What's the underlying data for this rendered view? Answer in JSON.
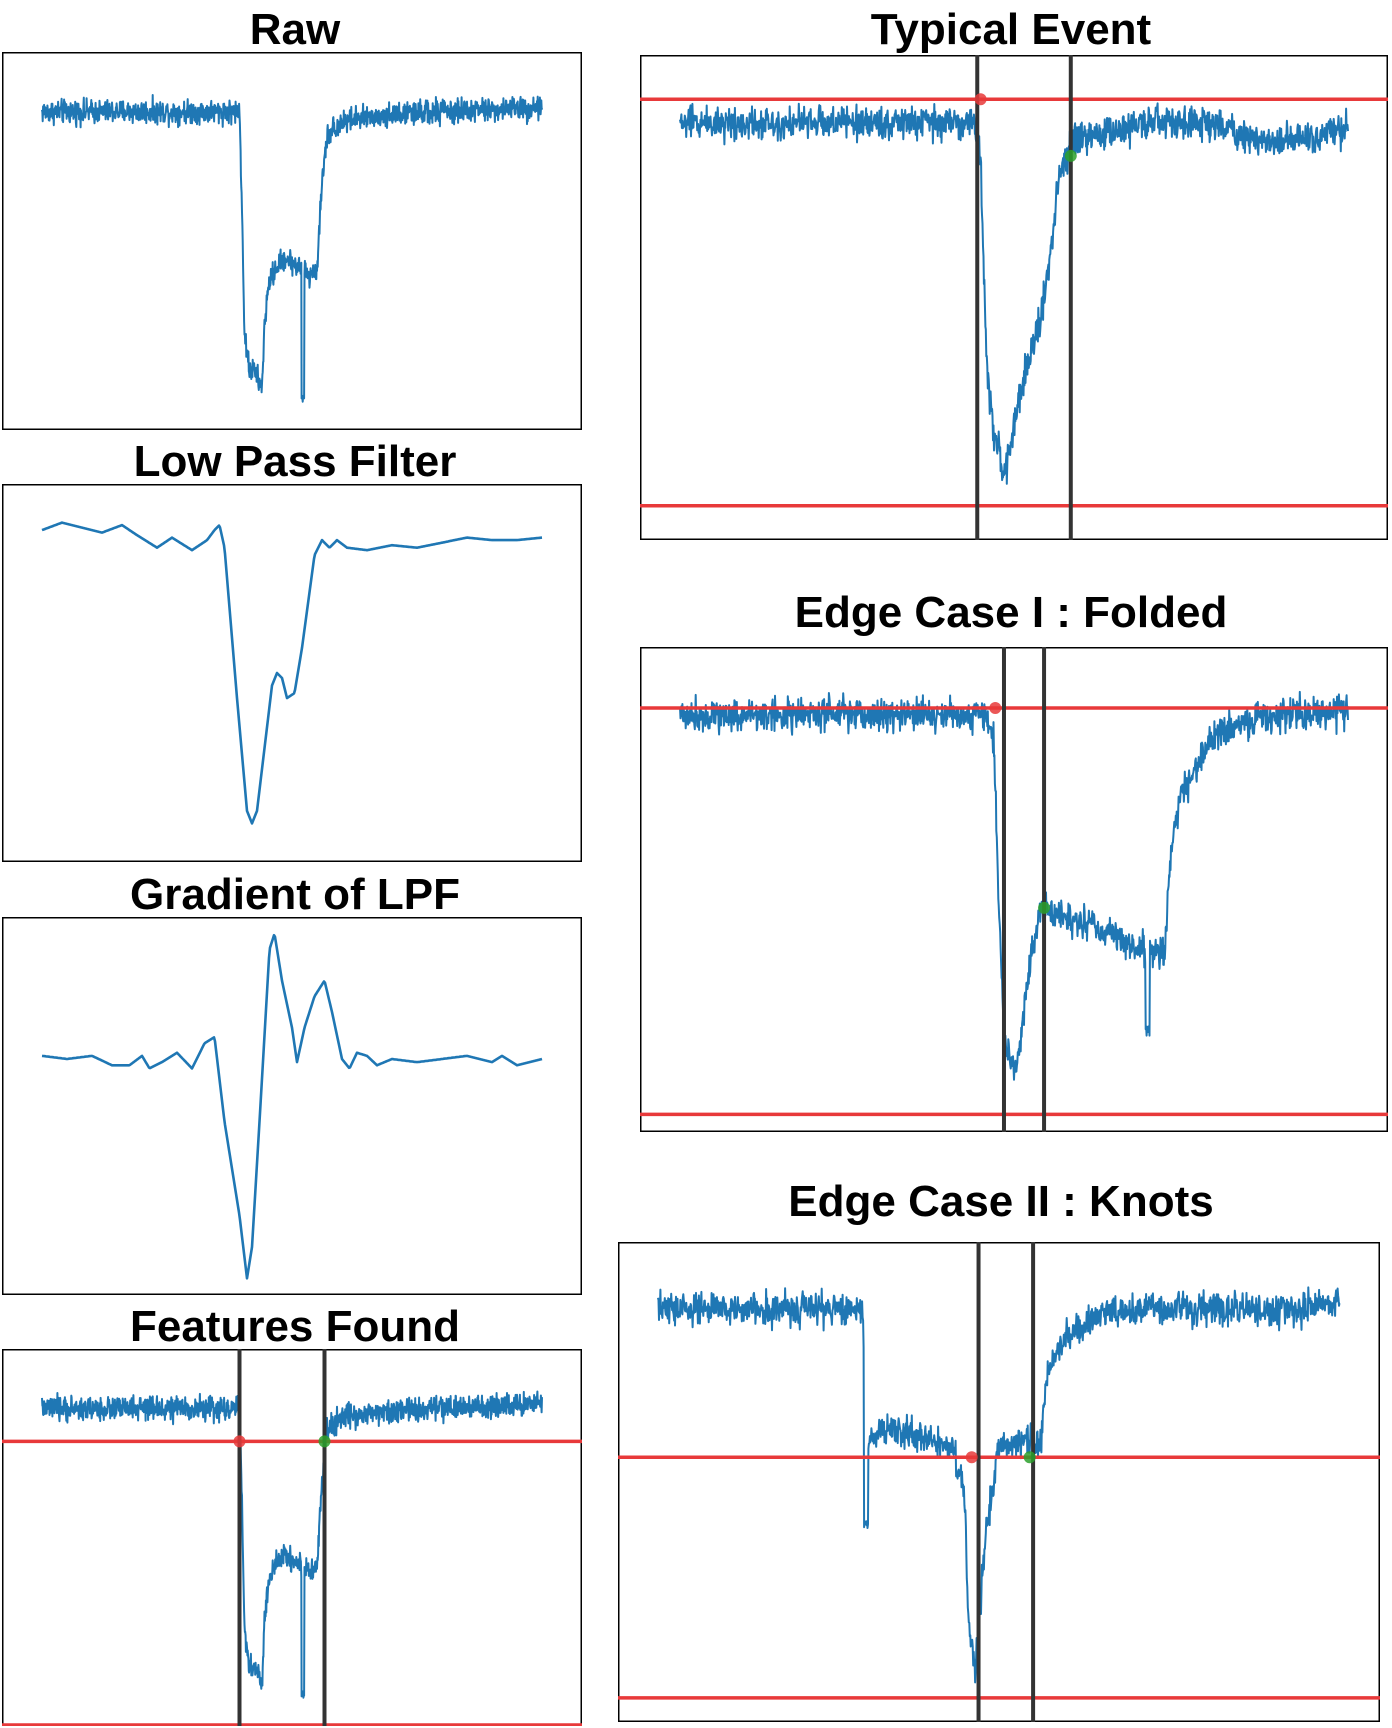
{
  "figure": {
    "colors": {
      "signal": "#1f77b4",
      "threshold": "#e8393a",
      "boundary": "#333333",
      "frame": "#000000",
      "start_marker": "#e8393a",
      "end_marker": "#2ca02c"
    }
  },
  "chart_data": [
    {
      "id": "raw",
      "type": "line",
      "title": "Raw",
      "xlim": [
        0,
        1000
      ],
      "ylim": [
        -1.35,
        0.25
      ],
      "noise": 0.035,
      "trace": [
        [
          0,
          0
        ],
        [
          395,
          0
        ],
        [
          400,
          -0.4
        ],
        [
          405,
          -0.95
        ],
        [
          415,
          -1.1
        ],
        [
          425,
          -1.1
        ],
        [
          440,
          -1.18
        ],
        [
          445,
          -0.9
        ],
        [
          455,
          -0.72
        ],
        [
          470,
          -0.66
        ],
        [
          485,
          -0.62
        ],
        [
          505,
          -0.65
        ],
        [
          525,
          -0.68
        ],
        [
          535,
          -0.7
        ],
        [
          550,
          -0.67
        ],
        [
          560,
          -0.3
        ],
        [
          570,
          -0.1
        ],
        [
          600,
          -0.04
        ],
        [
          700,
          -0.01
        ],
        [
          800,
          0
        ],
        [
          1000,
          0.02
        ]
      ],
      "spikes": [
        [
          522,
          -1.22
        ]
      ],
      "thresholds": [],
      "boundaries": [],
      "markers": []
    },
    {
      "id": "lpf",
      "type": "line",
      "title": "Low Pass Filter",
      "xlim": [
        0,
        1000
      ],
      "ylim": [
        -1.3,
        0.2
      ],
      "noise": 0,
      "trace": [
        [
          0,
          0.02
        ],
        [
          40,
          0.05
        ],
        [
          80,
          0.03
        ],
        [
          120,
          0.01
        ],
        [
          160,
          0.04
        ],
        [
          190,
          0.0
        ],
        [
          230,
          -0.05
        ],
        [
          260,
          -0.01
        ],
        [
          300,
          -0.06
        ],
        [
          330,
          -0.02
        ],
        [
          345,
          0.02
        ],
        [
          355,
          0.04
        ],
        [
          365,
          -0.05
        ],
        [
          390,
          -0.65
        ],
        [
          410,
          -1.1
        ],
        [
          420,
          -1.15
        ],
        [
          430,
          -1.1
        ],
        [
          445,
          -0.85
        ],
        [
          460,
          -0.6
        ],
        [
          470,
          -0.55
        ],
        [
          480,
          -0.57
        ],
        [
          490,
          -0.65
        ],
        [
          505,
          -0.63
        ],
        [
          520,
          -0.45
        ],
        [
          545,
          -0.08
        ],
        [
          560,
          -0.02
        ],
        [
          575,
          -0.05
        ],
        [
          590,
          -0.02
        ],
        [
          610,
          -0.05
        ],
        [
          650,
          -0.06
        ],
        [
          700,
          -0.04
        ],
        [
          750,
          -0.05
        ],
        [
          800,
          -0.03
        ],
        [
          850,
          -0.01
        ],
        [
          900,
          -0.02
        ],
        [
          950,
          -0.02
        ],
        [
          1000,
          -0.01
        ]
      ],
      "spikes": [],
      "thresholds": [],
      "boundaries": [],
      "markers": []
    },
    {
      "id": "grad",
      "type": "line",
      "title": "Gradient of LPF",
      "xlim": [
        0,
        1000
      ],
      "ylim": [
        -0.75,
        0.45
      ],
      "noise": 0,
      "trace": [
        [
          0,
          0.01
        ],
        [
          50,
          0.0
        ],
        [
          100,
          0.01
        ],
        [
          140,
          -0.02
        ],
        [
          175,
          -0.02
        ],
        [
          200,
          0.01
        ],
        [
          215,
          -0.03
        ],
        [
          240,
          -0.01
        ],
        [
          270,
          0.02
        ],
        [
          300,
          -0.03
        ],
        [
          325,
          0.05
        ],
        [
          345,
          0.07
        ],
        [
          365,
          -0.2
        ],
        [
          395,
          -0.5
        ],
        [
          410,
          -0.7
        ],
        [
          420,
          -0.6
        ],
        [
          435,
          -0.2
        ],
        [
          455,
          0.35
        ],
        [
          465,
          0.4
        ],
        [
          480,
          0.25
        ],
        [
          500,
          0.1
        ],
        [
          510,
          -0.01
        ],
        [
          525,
          0.1
        ],
        [
          545,
          0.2
        ],
        [
          565,
          0.25
        ],
        [
          580,
          0.15
        ],
        [
          600,
          0.0
        ],
        [
          615,
          -0.03
        ],
        [
          630,
          0.02
        ],
        [
          650,
          0.01
        ],
        [
          670,
          -0.02
        ],
        [
          700,
          0.0
        ],
        [
          750,
          -0.01
        ],
        [
          800,
          0.0
        ],
        [
          850,
          0.01
        ],
        [
          900,
          -0.01
        ],
        [
          920,
          0.01
        ],
        [
          950,
          -0.02
        ],
        [
          1000,
          0.0
        ]
      ],
      "spikes": [],
      "thresholds": [],
      "boundaries": [],
      "markers": []
    },
    {
      "id": "features",
      "type": "line",
      "title": "Features Found",
      "xlim": [
        0,
        1000
      ],
      "ylim": [
        -1.35,
        0.25
      ],
      "noise": 0.035,
      "trace": [
        [
          0,
          0
        ],
        [
          395,
          0
        ],
        [
          400,
          -0.4
        ],
        [
          405,
          -0.95
        ],
        [
          415,
          -1.1
        ],
        [
          425,
          -1.1
        ],
        [
          440,
          -1.18
        ],
        [
          445,
          -0.9
        ],
        [
          455,
          -0.72
        ],
        [
          470,
          -0.66
        ],
        [
          485,
          -0.62
        ],
        [
          505,
          -0.65
        ],
        [
          525,
          -0.68
        ],
        [
          535,
          -0.7
        ],
        [
          550,
          -0.67
        ],
        [
          560,
          -0.3
        ],
        [
          570,
          -0.1
        ],
        [
          600,
          -0.04
        ],
        [
          700,
          -0.01
        ],
        [
          800,
          0
        ],
        [
          1000,
          0.02
        ]
      ],
      "spikes": [
        [
          522,
          -1.22
        ]
      ],
      "thresholds": [
        -0.14,
        -1.35
      ],
      "boundaries": [
        395,
        565
      ],
      "markers": [
        [
          395,
          -0.14,
          "start"
        ],
        [
          565,
          -0.14,
          "end"
        ]
      ]
    },
    {
      "id": "typical",
      "type": "line",
      "title": "Typical Event",
      "xlim": [
        0,
        1000
      ],
      "ylim": [
        -1.25,
        0.2
      ],
      "noise": 0.035,
      "trace": [
        [
          0,
          0
        ],
        [
          440,
          0
        ],
        [
          450,
          -0.1
        ],
        [
          455,
          -0.45
        ],
        [
          460,
          -0.75
        ],
        [
          470,
          -0.95
        ],
        [
          480,
          -1.0
        ],
        [
          485,
          -1.08
        ],
        [
          490,
          -1.02
        ],
        [
          500,
          -0.9
        ],
        [
          510,
          -0.8
        ],
        [
          525,
          -0.7
        ],
        [
          540,
          -0.58
        ],
        [
          555,
          -0.4
        ],
        [
          565,
          -0.2
        ],
        [
          575,
          -0.1
        ],
        [
          600,
          -0.05
        ],
        [
          700,
          0.0
        ],
        [
          800,
          0.0
        ],
        [
          845,
          -0.04
        ],
        [
          900,
          -0.06
        ],
        [
          950,
          -0.04
        ],
        [
          1000,
          -0.02
        ]
      ],
      "spikes": [],
      "thresholds": [
        0.07,
        -1.15
      ],
      "boundaries": [
        445,
        585
      ],
      "markers": [
        [
          450,
          0.07,
          "start"
        ],
        [
          585,
          -0.1,
          "end"
        ]
      ]
    },
    {
      "id": "folded",
      "type": "line",
      "title": "Edge Case I : Folded",
      "xlim": [
        0,
        1000
      ],
      "ylim": [
        -1.25,
        0.2
      ],
      "noise": 0.035,
      "trace": [
        [
          0,
          0
        ],
        [
          460,
          0
        ],
        [
          470,
          -0.1
        ],
        [
          478,
          -0.6
        ],
        [
          485,
          -0.95
        ],
        [
          495,
          -1.05
        ],
        [
          505,
          -1.05
        ],
        [
          515,
          -0.9
        ],
        [
          525,
          -0.72
        ],
        [
          540,
          -0.58
        ],
        [
          560,
          -0.6
        ],
        [
          600,
          -0.62
        ],
        [
          640,
          -0.65
        ],
        [
          680,
          -0.7
        ],
        [
          725,
          -0.72
        ],
        [
          735,
          -0.4
        ],
        [
          750,
          -0.25
        ],
        [
          780,
          -0.13
        ],
        [
          810,
          -0.05
        ],
        [
          850,
          -0.02
        ],
        [
          900,
          0.0
        ],
        [
          1000,
          0.01
        ]
      ],
      "spikes": [
        [
          700,
          -0.95
        ]
      ],
      "thresholds": [
        0.02,
        -1.2
      ],
      "boundaries": [
        485,
        545
      ],
      "markers": [
        [
          472,
          0.02,
          "start"
        ],
        [
          545,
          -0.58,
          "end"
        ]
      ]
    },
    {
      "id": "knots",
      "type": "line",
      "title": "Edge Case II : Knots",
      "xlim": [
        0,
        1000
      ],
      "ylim": [
        -1.25,
        0.2
      ],
      "noise": 0.035,
      "trace": [
        [
          0,
          0
        ],
        [
          300,
          0
        ],
        [
          305,
          -0.4
        ],
        [
          320,
          -0.38
        ],
        [
          350,
          -0.36
        ],
        [
          400,
          -0.4
        ],
        [
          440,
          -0.44
        ],
        [
          450,
          -0.6
        ],
        [
          455,
          -0.95
        ],
        [
          465,
          -1.1
        ],
        [
          470,
          -0.95
        ],
        [
          480,
          -0.7
        ],
        [
          490,
          -0.55
        ],
        [
          500,
          -0.42
        ],
        [
          530,
          -0.4
        ],
        [
          560,
          -0.42
        ],
        [
          570,
          -0.2
        ],
        [
          600,
          -0.08
        ],
        [
          650,
          -0.02
        ],
        [
          700,
          0.0
        ],
        [
          800,
          0.0
        ],
        [
          900,
          0.0
        ],
        [
          950,
          0.0
        ],
        [
          980,
          0.02
        ],
        [
          1000,
          0.03
        ]
      ],
      "spikes": [
        [
          305,
          -0.65
        ],
        [
          440,
          -0.5
        ]
      ],
      "thresholds": [
        -0.45,
        -1.18
      ],
      "boundaries": [
        470,
        550
      ],
      "markers": [
        [
          460,
          -0.45,
          "start"
        ],
        [
          545,
          -0.45,
          "end"
        ]
      ]
    }
  ]
}
